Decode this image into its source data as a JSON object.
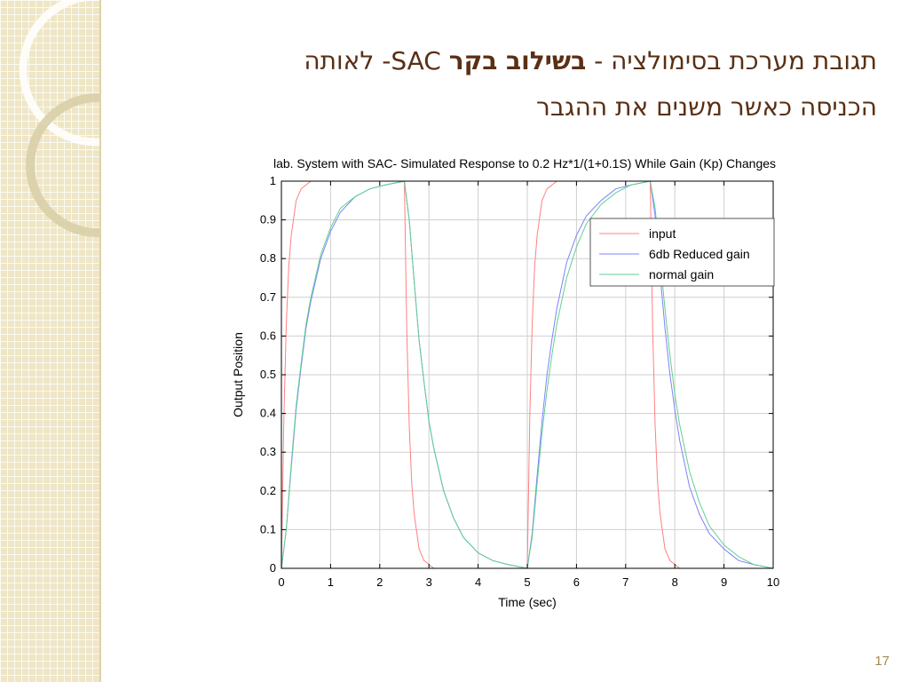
{
  "slide": {
    "title_line1_before": "תגובת מערכת בסימולציה -",
    "title_line1_bold": "בשילוב בקר",
    "title_line1_after": "SAC- לאותה",
    "title_line2": "הכניסה כאשר משנים את ההגבר",
    "page_number": "17"
  },
  "colors": {
    "title": "#5a2f14",
    "sidebar": "#efe6c6",
    "input": "#ff8080",
    "reduced": "#8080ff",
    "normal": "#60d090"
  },
  "chart_data": {
    "type": "line",
    "title": "lab. System with SAC- Simulated Response to 0.2 Hz*1/(1+0.1S) While Gain (Kp) Changes",
    "xlabel": "Time (sec)",
    "ylabel": "Output Position",
    "xlim": [
      0,
      10
    ],
    "ylim": [
      0,
      1
    ],
    "xticks": [
      0,
      1,
      2,
      3,
      4,
      5,
      6,
      7,
      8,
      9,
      10
    ],
    "yticks": [
      0,
      0.1,
      0.2,
      0.3,
      0.4,
      0.5,
      0.6,
      0.7,
      0.8,
      0.9,
      1
    ],
    "grid": true,
    "legend_position": "top-right",
    "series": [
      {
        "name": "input",
        "color": "#ff8080",
        "x": [
          0,
          0.05,
          0.1,
          0.15,
          0.2,
          0.3,
          0.4,
          0.5,
          0.6,
          0.8,
          2.5,
          2.55,
          2.6,
          2.65,
          2.7,
          2.8,
          2.9,
          3.0,
          3.1,
          3.3,
          5.0,
          5.05,
          5.1,
          5.15,
          5.2,
          5.3,
          5.4,
          5.5,
          5.6,
          5.8,
          7.5,
          7.55,
          7.6,
          7.65,
          7.7,
          7.8,
          7.9,
          8.0,
          8.1,
          8.3,
          10
        ],
        "y": [
          0,
          0.39,
          0.63,
          0.78,
          0.86,
          0.95,
          0.98,
          0.99,
          1.0,
          1.0,
          1.0,
          0.61,
          0.37,
          0.22,
          0.14,
          0.05,
          0.02,
          0.01,
          0.0,
          0.0,
          0.0,
          0.39,
          0.63,
          0.78,
          0.86,
          0.95,
          0.98,
          0.99,
          1.0,
          1.0,
          1.0,
          0.61,
          0.37,
          0.22,
          0.14,
          0.05,
          0.02,
          0.01,
          0.0,
          0.0,
          0.0
        ]
      },
      {
        "name": "6db Reduced gain",
        "color": "#8080ff",
        "x": [
          0,
          0.1,
          0.2,
          0.3,
          0.4,
          0.5,
          0.6,
          0.8,
          1.0,
          1.2,
          1.5,
          1.8,
          2.1,
          2.5,
          2.6,
          2.7,
          2.8,
          2.9,
          3.0,
          3.1,
          3.3,
          3.5,
          3.7,
          4.0,
          4.3,
          4.6,
          5.0,
          5.1,
          5.2,
          5.3,
          5.4,
          5.5,
          5.6,
          5.8,
          6.0,
          6.2,
          6.5,
          6.8,
          7.1,
          7.5,
          7.6,
          7.7,
          7.8,
          7.9,
          8.0,
          8.1,
          8.3,
          8.5,
          8.7,
          9.0,
          9.3,
          9.6,
          10
        ],
        "y": [
          0,
          0.1,
          0.26,
          0.41,
          0.52,
          0.62,
          0.69,
          0.8,
          0.87,
          0.92,
          0.96,
          0.98,
          0.99,
          1.0,
          0.9,
          0.74,
          0.59,
          0.48,
          0.38,
          0.31,
          0.2,
          0.13,
          0.08,
          0.04,
          0.02,
          0.01,
          0.0,
          0.09,
          0.24,
          0.38,
          0.5,
          0.59,
          0.67,
          0.79,
          0.86,
          0.91,
          0.95,
          0.98,
          0.99,
          1.0,
          0.91,
          0.76,
          0.62,
          0.5,
          0.41,
          0.33,
          0.21,
          0.14,
          0.09,
          0.05,
          0.02,
          0.01,
          0.0
        ]
      },
      {
        "name": "normal gain",
        "color": "#60d090",
        "x": [
          0,
          0.1,
          0.2,
          0.3,
          0.4,
          0.5,
          0.6,
          0.8,
          1.0,
          1.2,
          1.5,
          1.8,
          2.1,
          2.5,
          2.6,
          2.7,
          2.8,
          2.9,
          3.0,
          3.1,
          3.3,
          3.5,
          3.7,
          4.0,
          4.3,
          4.6,
          5.0,
          5.1,
          5.2,
          5.3,
          5.4,
          5.5,
          5.6,
          5.8,
          6.0,
          6.2,
          6.5,
          6.8,
          7.1,
          7.5,
          7.6,
          7.7,
          7.8,
          7.9,
          8.0,
          8.1,
          8.3,
          8.5,
          8.7,
          9.0,
          9.3,
          9.6,
          10
        ],
        "y": [
          0,
          0.1,
          0.27,
          0.42,
          0.53,
          0.63,
          0.7,
          0.81,
          0.88,
          0.93,
          0.96,
          0.98,
          0.99,
          1.0,
          0.9,
          0.74,
          0.59,
          0.48,
          0.38,
          0.31,
          0.2,
          0.13,
          0.08,
          0.04,
          0.02,
          0.01,
          0.0,
          0.08,
          0.22,
          0.35,
          0.46,
          0.55,
          0.63,
          0.75,
          0.83,
          0.89,
          0.94,
          0.97,
          0.99,
          1.0,
          0.93,
          0.8,
          0.67,
          0.55,
          0.45,
          0.37,
          0.25,
          0.17,
          0.11,
          0.06,
          0.03,
          0.01,
          0.0
        ]
      }
    ]
  }
}
